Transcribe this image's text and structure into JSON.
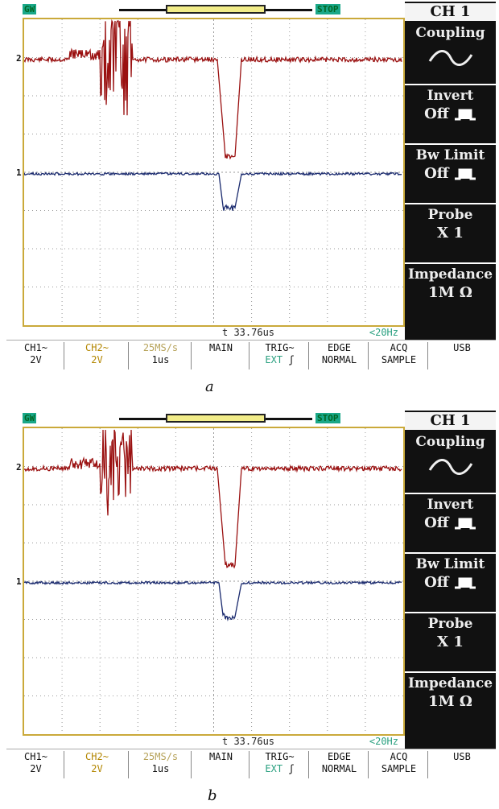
{
  "panels": [
    {
      "caption": "a",
      "status_left": "GW",
      "status_right": "STOP",
      "ch2_marker": "2",
      "ch1_marker": "1",
      "time_offset": "t 33.76us",
      "freq_readout": "<20Hz",
      "menu": {
        "title": "CH 1",
        "coupling_label": "Coupling",
        "coupling_icon": "ac-wave-icon",
        "invert_label": "Invert",
        "invert_value": "Off",
        "bw_label": "Bw Limit",
        "bw_value": "Off",
        "probe_label": "Probe",
        "probe_value": "X 1",
        "impedance_label": "Impedance",
        "impedance_value": "1M Ω"
      },
      "bottom": {
        "ch1": "CH1~",
        "ch1_v": "2V",
        "ch2": "CH2~",
        "ch2_v": "2V",
        "rate": "25MS/s",
        "rate_v": "1us",
        "main": "MAIN",
        "trig": "TRIG~",
        "trig_v": "EXT",
        "edge": "EDGE",
        "edge_v": "NORMAL",
        "acq": "ACQ",
        "acq_v": "SAMPLE",
        "usb": "USB"
      }
    },
    {
      "caption": "b",
      "status_left": "GW",
      "status_right": "STOP",
      "ch2_marker": "2",
      "ch1_marker": "1",
      "time_offset": "t 33.76us",
      "freq_readout": "<20Hz",
      "menu": {
        "title": "CH 1",
        "coupling_label": "Coupling",
        "coupling_icon": "ac-wave-icon",
        "invert_label": "Invert",
        "invert_value": "Off",
        "bw_label": "Bw Limit",
        "bw_value": "Off",
        "probe_label": "Probe",
        "probe_value": "X 1",
        "impedance_label": "Impedance",
        "impedance_value": "1M Ω"
      },
      "bottom": {
        "ch1": "CH1~",
        "ch1_v": "2V",
        "ch2": "CH2~",
        "ch2_v": "2V",
        "rate": "25MS/s",
        "rate_v": "1us",
        "main": "MAIN",
        "trig": "TRIG~",
        "trig_v": "EXT",
        "edge": "EDGE",
        "edge_v": "NORMAL",
        "acq": "ACQ",
        "acq_v": "SAMPLE",
        "usb": "USB"
      }
    }
  ],
  "colors": {
    "ch1_trace": "#1a2a6e",
    "ch2_trace": "#9a1010",
    "grid": "#9a9a9a",
    "status_badge": "#1aa889"
  }
}
